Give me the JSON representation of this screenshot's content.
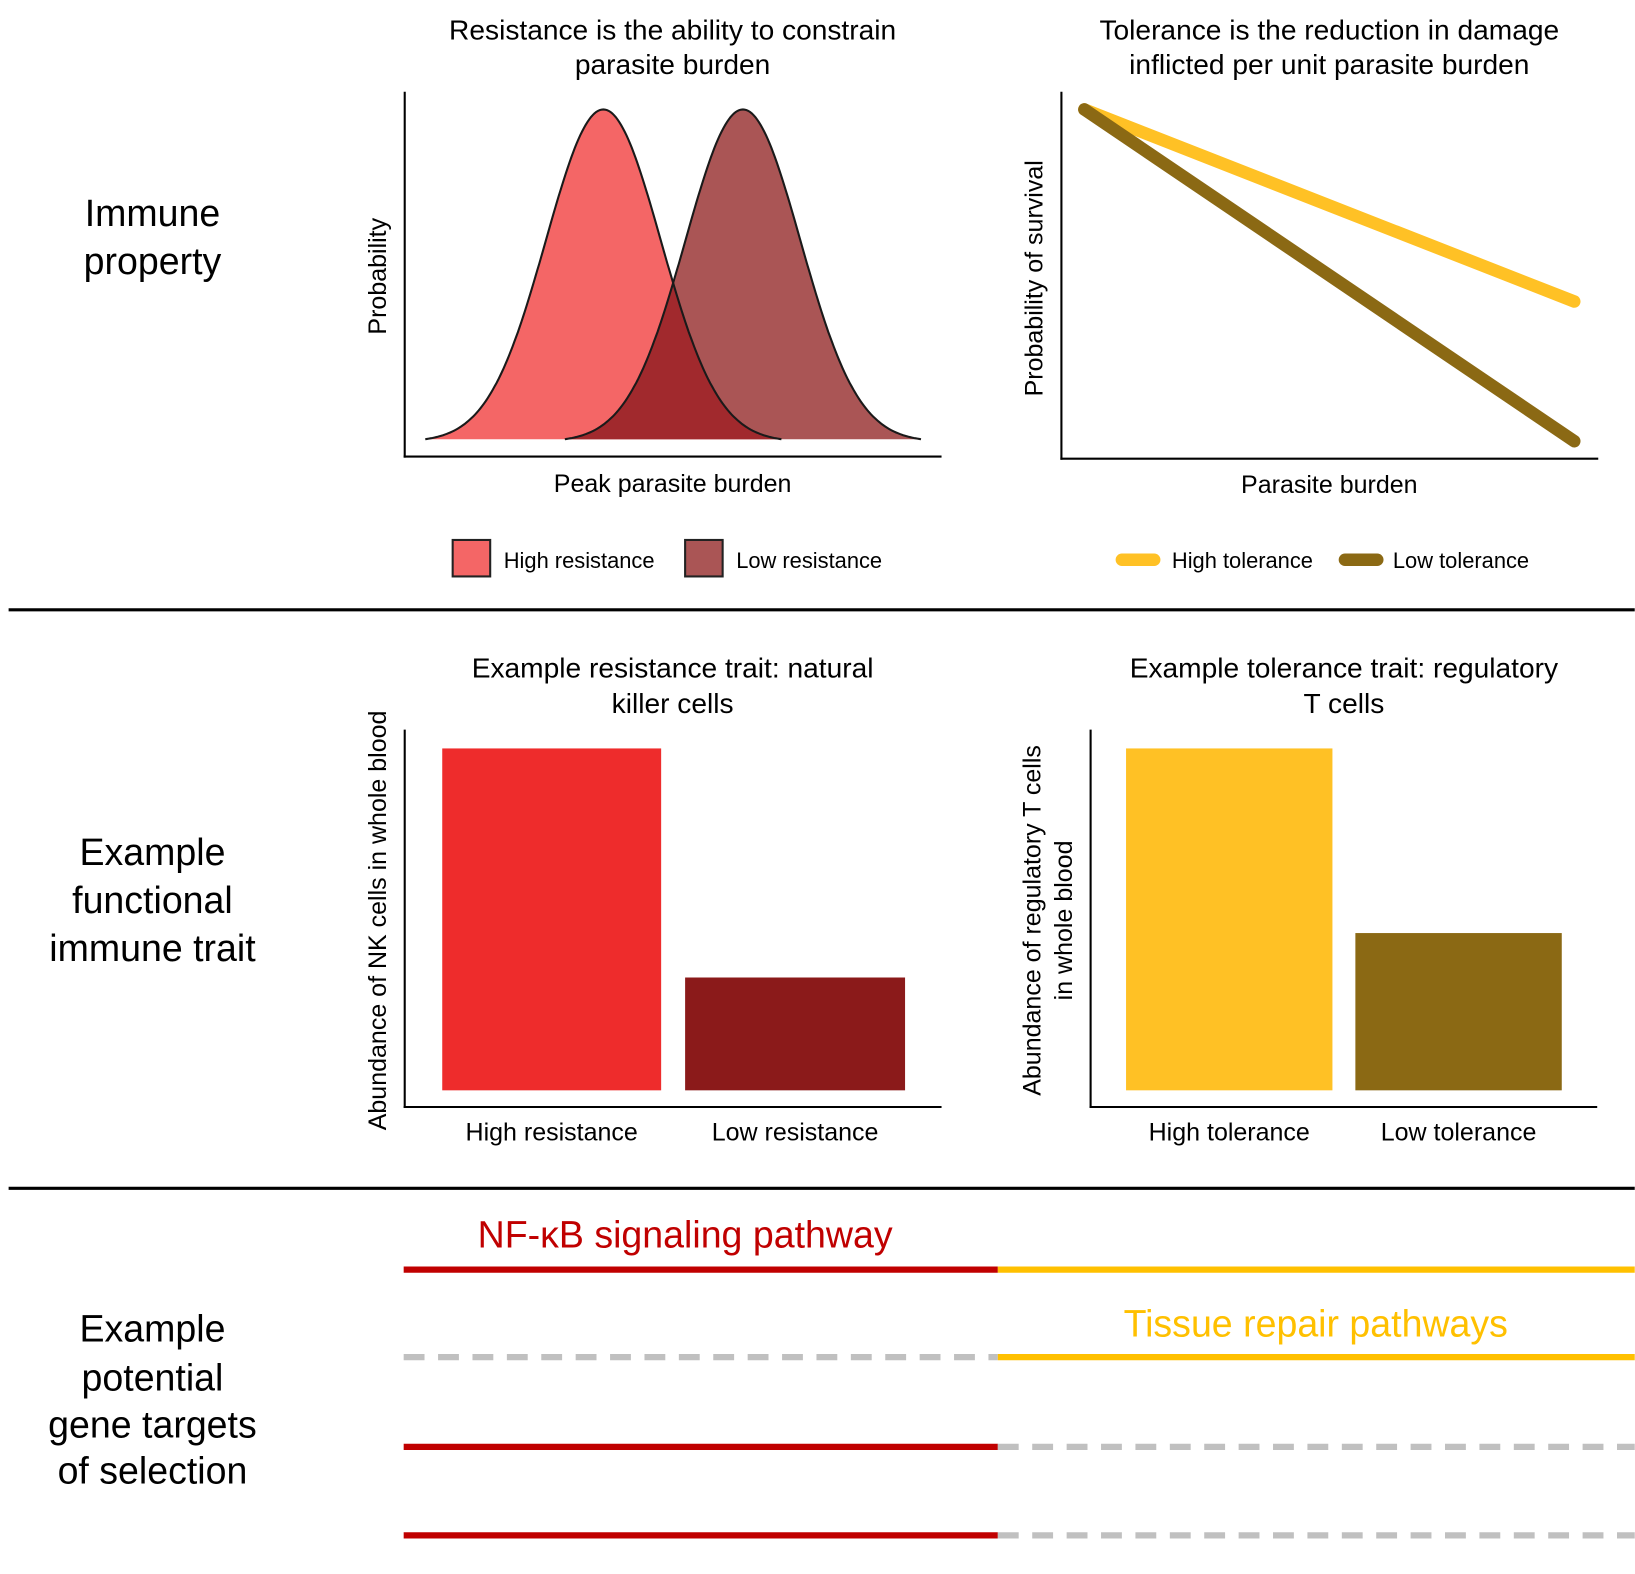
{
  "row_labels": {
    "immune_property": [
      "Immune",
      "property"
    ],
    "functional_trait": [
      "Example",
      "functional",
      "immune trait"
    ],
    "gene_targets": [
      "Example",
      "potential",
      "gene targets",
      "of selection"
    ]
  },
  "chart_data": [
    {
      "type": "area",
      "title": [
        "Resistance is the ability to constrain",
        "parasite burden"
      ],
      "xlabel": "Peak parasite burden",
      "ylabel": "Probability",
      "xlim": [
        0,
        10
      ],
      "ylim": [
        0,
        1
      ],
      "series": [
        {
          "name": "High resistance",
          "distribution": "normal",
          "mean": 3.7,
          "sd": 1.07,
          "color": "#F46666"
        },
        {
          "name": "Low resistance",
          "distribution": "normal",
          "mean": 6.3,
          "sd": 1.07,
          "color": "#AA5555"
        }
      ],
      "overlap_color": "#A1292D",
      "legend": "bottom"
    },
    {
      "type": "line",
      "title": [
        "Tolerance is the reduction in damage",
        "inflicted per unit parasite burden"
      ],
      "xlabel": "Parasite burden",
      "ylabel": "Probability of survival",
      "xlim": [
        0,
        1
      ],
      "ylim": [
        0,
        1
      ],
      "series": [
        {
          "name": "High tolerance",
          "x": [
            0,
            1
          ],
          "y": [
            1.0,
            0.45
          ],
          "color": "#FFC125"
        },
        {
          "name": "Low tolerance",
          "x": [
            0,
            1
          ],
          "y": [
            1.0,
            0.05
          ],
          "color": "#8B6914"
        }
      ],
      "legend": "bottom"
    },
    {
      "type": "bar",
      "title": [
        "Example resistance trait: natural",
        "killer cells"
      ],
      "ylabel": [
        "Abundance of NK cells in whole blood"
      ],
      "categories": [
        "High resistance",
        "Low resistance"
      ],
      "values": [
        1.0,
        0.33
      ],
      "colors": [
        "#EE2C2C",
        "#8B1A1A"
      ],
      "ylim": [
        0,
        1.05
      ]
    },
    {
      "type": "bar",
      "title": [
        "Example tolerance trait: regulatory",
        "T cells"
      ],
      "ylabel": [
        "Abundance of regulatory T cells",
        "in whole blood"
      ],
      "categories": [
        "High tolerance",
        "Low tolerance"
      ],
      "values": [
        1.0,
        0.46
      ],
      "colors": [
        "#FFC125",
        "#8B6914"
      ],
      "ylim": [
        0,
        1.05
      ]
    }
  ],
  "gene_targets": {
    "resistance_label": "NF-κB signaling pathway",
    "tolerance_label": "Tissue repair pathways",
    "colors": {
      "resistance": "#C00000",
      "tolerance": "#FFC000",
      "neutral": "#C0C0C0"
    },
    "rows": [
      {
        "resistance": "selected",
        "tolerance": "selected"
      },
      {
        "resistance": "none",
        "tolerance": "selected"
      },
      {
        "resistance": "selected",
        "tolerance": "none"
      },
      {
        "resistance": "selected",
        "tolerance": "none"
      }
    ]
  }
}
